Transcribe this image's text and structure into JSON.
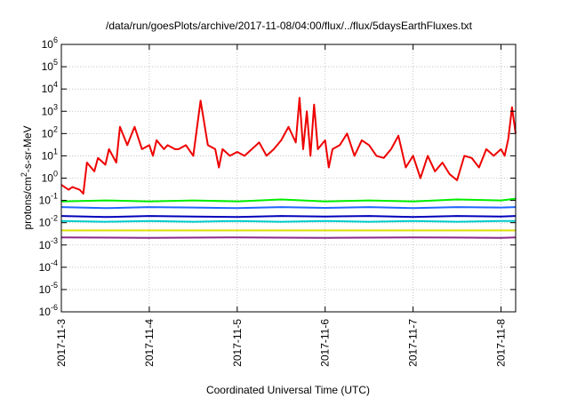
{
  "chart_data": {
    "type": "line",
    "title": "/data/run/goesPlots/archive/2017-11-08/04:00/flux/../flux/5daysEarthFluxes.txt",
    "xlabel": "Coordinated Universal Time (UTC)",
    "ylabel": {
      "base": "protons/cm",
      "sup": "2",
      "rest": "-s-sr-MeV"
    },
    "y_scale": "log",
    "ylim": [
      1e-06,
      1000000.0
    ],
    "xlim": [
      "2017-11-03T00:00",
      "2017-11-08T04:00"
    ],
    "grid": true,
    "legend": "none",
    "y_ticks": [
      {
        "value": 1e-06,
        "base": "10",
        "exp": "-6"
      },
      {
        "value": 1e-05,
        "base": "10",
        "exp": "-5"
      },
      {
        "value": 0.0001,
        "base": "10",
        "exp": "-4"
      },
      {
        "value": 0.001,
        "base": "10",
        "exp": "-3"
      },
      {
        "value": 0.01,
        "base": "10",
        "exp": "-2"
      },
      {
        "value": 0.1,
        "base": "10",
        "exp": "-1"
      },
      {
        "value": 1,
        "base": "10",
        "exp": "0"
      },
      {
        "value": 10,
        "base": "10",
        "exp": "1"
      },
      {
        "value": 100,
        "base": "10",
        "exp": "2"
      },
      {
        "value": 1000,
        "base": "10",
        "exp": "3"
      },
      {
        "value": 10000,
        "base": "10",
        "exp": "4"
      },
      {
        "value": 100000,
        "base": "10",
        "exp": "5"
      },
      {
        "value": 1000000,
        "base": "10",
        "exp": "6"
      }
    ],
    "x_ticks": [
      {
        "value": "2017-11-03T00:00",
        "label": "2017-11-3"
      },
      {
        "value": "2017-11-04T00:00",
        "label": "2017-11-4"
      },
      {
        "value": "2017-11-05T00:00",
        "label": "2017-11-5"
      },
      {
        "value": "2017-11-06T00:00",
        "label": "2017-11-6"
      },
      {
        "value": "2017-11-07T00:00",
        "label": "2017-11-7"
      },
      {
        "value": "2017-11-08T00:00",
        "label": "2017-11-8"
      }
    ],
    "series": [
      {
        "color": "#ee0000",
        "x": [
          "2017-11-03T00:00",
          "2017-11-03T02:00",
          "2017-11-03T03:00",
          "2017-11-03T05:00",
          "2017-11-03T06:00",
          "2017-11-03T07:00",
          "2017-11-03T09:00",
          "2017-11-03T10:00",
          "2017-11-03T12:00",
          "2017-11-03T13:00",
          "2017-11-03T15:00",
          "2017-11-03T16:00",
          "2017-11-03T18:00",
          "2017-11-03T19:00",
          "2017-11-03T20:00",
          "2017-11-03T22:00",
          "2017-11-04T00:00",
          "2017-11-04T01:00",
          "2017-11-04T02:00",
          "2017-11-04T04:00",
          "2017-11-04T05:00",
          "2017-11-04T07:00",
          "2017-11-04T08:00",
          "2017-11-04T10:00",
          "2017-11-04T12:00",
          "2017-11-04T14:00",
          "2017-11-04T16:00",
          "2017-11-04T18:00",
          "2017-11-04T19:00",
          "2017-11-04T20:00",
          "2017-11-04T22:00",
          "2017-11-05T00:00",
          "2017-11-05T02:00",
          "2017-11-05T04:00",
          "2017-11-05T06:00",
          "2017-11-05T08:00",
          "2017-11-05T10:00",
          "2017-11-05T12:00",
          "2017-11-05T14:00",
          "2017-11-05T16:00",
          "2017-11-05T17:00",
          "2017-11-05T18:00",
          "2017-11-05T19:00",
          "2017-11-05T20:00",
          "2017-11-05T21:00",
          "2017-11-05T22:00",
          "2017-11-06T00:00",
          "2017-11-06T01:00",
          "2017-11-06T02:00",
          "2017-11-06T04:00",
          "2017-11-06T06:00",
          "2017-11-06T08:00",
          "2017-11-06T10:00",
          "2017-11-06T12:00",
          "2017-11-06T14:00",
          "2017-11-06T16:00",
          "2017-11-06T18:00",
          "2017-11-06T20:00",
          "2017-11-06T22:00",
          "2017-11-07T00:00",
          "2017-11-07T02:00",
          "2017-11-07T04:00",
          "2017-11-07T06:00",
          "2017-11-07T08:00",
          "2017-11-07T10:00",
          "2017-11-07T12:00",
          "2017-11-07T14:00",
          "2017-11-07T16:00",
          "2017-11-07T18:00",
          "2017-11-07T20:00",
          "2017-11-07T22:00",
          "2017-11-08T00:00",
          "2017-11-08T01:00",
          "2017-11-08T02:00",
          "2017-11-08T03:00",
          "2017-11-08T04:00"
        ],
        "y": [
          0.5,
          0.3,
          0.4,
          0.3,
          0.2,
          5,
          2,
          8,
          4,
          20,
          5,
          200,
          30,
          80,
          200,
          20,
          30,
          10,
          50,
          20,
          30,
          20,
          20,
          30,
          10,
          3000,
          30,
          20,
          3,
          20,
          10,
          15,
          10,
          20,
          40,
          10,
          20,
          50,
          200,
          40,
          4000,
          20,
          1000,
          10,
          2000,
          20,
          50,
          3,
          20,
          30,
          100,
          10,
          50,
          30,
          10,
          8,
          20,
          80,
          3,
          10,
          1,
          10,
          2,
          5,
          1.5,
          0.8,
          10,
          8,
          3,
          20,
          10,
          20,
          10,
          60,
          1500,
          100
        ],
        "name": ""
      },
      {
        "color": "#00ee00",
        "x": [
          "2017-11-03T00:00",
          "2017-11-03T12:00",
          "2017-11-04T00:00",
          "2017-11-04T12:00",
          "2017-11-05T00:00",
          "2017-11-05T12:00",
          "2017-11-06T00:00",
          "2017-11-06T12:00",
          "2017-11-07T00:00",
          "2017-11-07T12:00",
          "2017-11-08T00:00",
          "2017-11-08T04:00"
        ],
        "y": [
          0.09,
          0.1,
          0.09,
          0.1,
          0.09,
          0.11,
          0.09,
          0.1,
          0.09,
          0.11,
          0.1,
          0.12
        ],
        "name": ""
      },
      {
        "color": "#1f66ff",
        "x": [
          "2017-11-03T00:00",
          "2017-11-03T12:00",
          "2017-11-04T00:00",
          "2017-11-04T12:00",
          "2017-11-05T00:00",
          "2017-11-05T12:00",
          "2017-11-06T00:00",
          "2017-11-06T12:00",
          "2017-11-07T00:00",
          "2017-11-07T12:00",
          "2017-11-08T00:00",
          "2017-11-08T04:00"
        ],
        "y": [
          0.05,
          0.045,
          0.05,
          0.048,
          0.045,
          0.05,
          0.046,
          0.05,
          0.045,
          0.05,
          0.048,
          0.05
        ],
        "name": ""
      },
      {
        "color": "#00cccc",
        "x": [
          "2017-11-03T00:00",
          "2017-11-03T12:00",
          "2017-11-04T00:00",
          "2017-11-04T12:00",
          "2017-11-05T00:00",
          "2017-11-05T12:00",
          "2017-11-06T00:00",
          "2017-11-06T12:00",
          "2017-11-07T00:00",
          "2017-11-07T12:00",
          "2017-11-08T00:00",
          "2017-11-08T04:00"
        ],
        "y": [
          0.012,
          0.011,
          0.012,
          0.011,
          0.012,
          0.011,
          0.012,
          0.011,
          0.012,
          0.011,
          0.012,
          0.012
        ],
        "name": ""
      },
      {
        "color": "#0000bb",
        "x": [
          "2017-11-03T00:00",
          "2017-11-03T12:00",
          "2017-11-04T00:00",
          "2017-11-04T12:00",
          "2017-11-05T00:00",
          "2017-11-05T12:00",
          "2017-11-06T00:00",
          "2017-11-06T12:00",
          "2017-11-07T00:00",
          "2017-11-07T12:00",
          "2017-11-08T00:00",
          "2017-11-08T04:00"
        ],
        "y": [
          0.02,
          0.018,
          0.02,
          0.019,
          0.018,
          0.02,
          0.019,
          0.02,
          0.018,
          0.02,
          0.019,
          0.02
        ],
        "name": ""
      },
      {
        "color": "#dddd00",
        "x": [
          "2017-11-03T00:00",
          "2017-11-04T00:00",
          "2017-11-05T00:00",
          "2017-11-06T00:00",
          "2017-11-07T00:00",
          "2017-11-08T00:00",
          "2017-11-08T04:00"
        ],
        "y": [
          0.0045,
          0.0045,
          0.0045,
          0.0045,
          0.0045,
          0.0045,
          0.0045
        ],
        "name": ""
      },
      {
        "color": "#8b2a8b",
        "x": [
          "2017-11-03T00:00",
          "2017-11-04T00:00",
          "2017-11-05T00:00",
          "2017-11-06T00:00",
          "2017-11-07T00:00",
          "2017-11-08T00:00",
          "2017-11-08T04:00"
        ],
        "y": [
          0.0022,
          0.0021,
          0.0022,
          0.0021,
          0.0022,
          0.0021,
          0.0022
        ],
        "name": ""
      }
    ]
  }
}
